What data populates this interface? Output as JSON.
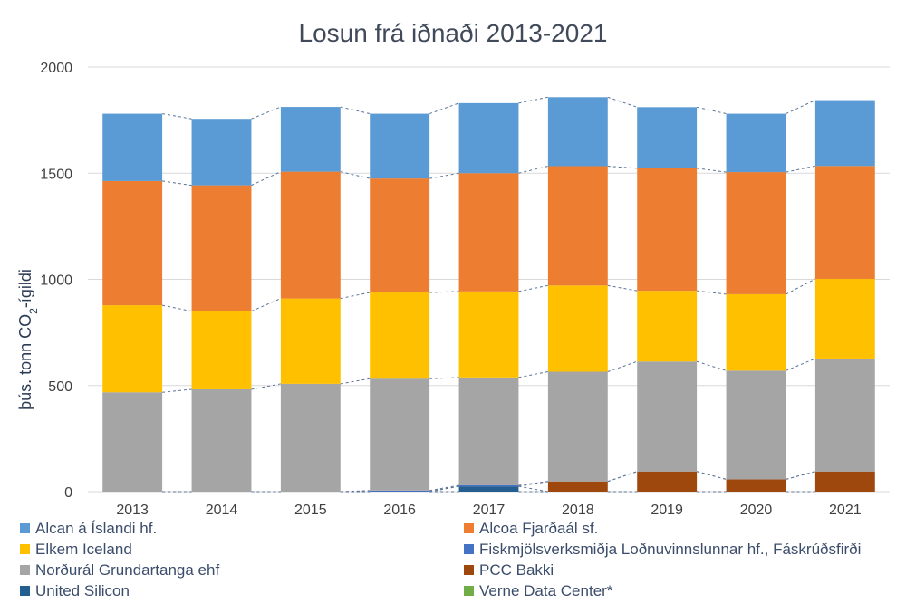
{
  "chart_data": {
    "type": "bar",
    "stacked": true,
    "title": "Losun frá iðnaði 2013-2021",
    "ylabel_prefix": "þús. tonn CO",
    "ylabel_sub": "2",
    "ylabel_suffix": "-ígildi",
    "xlabel": "",
    "ylim": [
      0,
      2000
    ],
    "yticks": [
      "0",
      "500",
      "1000",
      "1500",
      "2000"
    ],
    "grid": true,
    "legend_position": "bottom",
    "categories": [
      "2013",
      "2014",
      "2015",
      "2016",
      "2017",
      "2018",
      "2019",
      "2020",
      "2021"
    ],
    "series": [
      {
        "name": "Verne Data Center*",
        "color": "#70ad47",
        "values": [
          0,
          0,
          0,
          0,
          0,
          0,
          0,
          0,
          0
        ]
      },
      {
        "name": "United Silicon",
        "color": "#255e91",
        "values": [
          0,
          0,
          0,
          0,
          25,
          0,
          0,
          0,
          0
        ]
      },
      {
        "name": "PCC Bakki",
        "color": "#9e480e",
        "values": [
          0,
          0,
          0,
          0,
          0,
          48,
          95,
          58,
          95
        ]
      },
      {
        "name": "Fiskmjölsverksmiðja Loðnuvinnslunnar hf., Fáskrúðsfirði",
        "color": "#4472c4",
        "values": [
          0,
          0,
          0,
          5,
          5,
          0,
          0,
          0,
          0
        ]
      },
      {
        "name": "Norðurál Grundartanga ehf",
        "color": "#a5a5a5",
        "values": [
          468,
          482,
          508,
          527,
          508,
          517,
          518,
          512,
          532
        ]
      },
      {
        "name": "Elkem Iceland",
        "color": "#ffc000",
        "values": [
          410,
          368,
          402,
          406,
          405,
          406,
          333,
          360,
          375
        ]
      },
      {
        "name": "Alcoa Fjarðaál sf.",
        "color": "#ed7d31",
        "values": [
          585,
          593,
          597,
          537,
          557,
          562,
          577,
          575,
          532
        ]
      },
      {
        "name": "Alcan á Íslandi hf.",
        "color": "#5b9bd5",
        "values": [
          317,
          313,
          305,
          305,
          330,
          325,
          288,
          275,
          310
        ]
      }
    ],
    "legend": [
      {
        "name": "Alcan á Íslandi hf.",
        "color": "#5b9bd5"
      },
      {
        "name": "Alcoa Fjarðaál sf.",
        "color": "#ed7d31"
      },
      {
        "name": "Elkem Iceland",
        "color": "#ffc000"
      },
      {
        "name": "Fiskmjölsverksmiðja Loðnuvinnslunnar hf., Fáskrúðsfirði",
        "color": "#4472c4"
      },
      {
        "name": "Norðurál Grundartanga ehf",
        "color": "#a5a5a5"
      },
      {
        "name": "PCC Bakki",
        "color": "#9e480e"
      },
      {
        "name": "United Silicon",
        "color": "#255e91"
      },
      {
        "name": "Verne Data Center*",
        "color": "#70ad47"
      }
    ]
  }
}
